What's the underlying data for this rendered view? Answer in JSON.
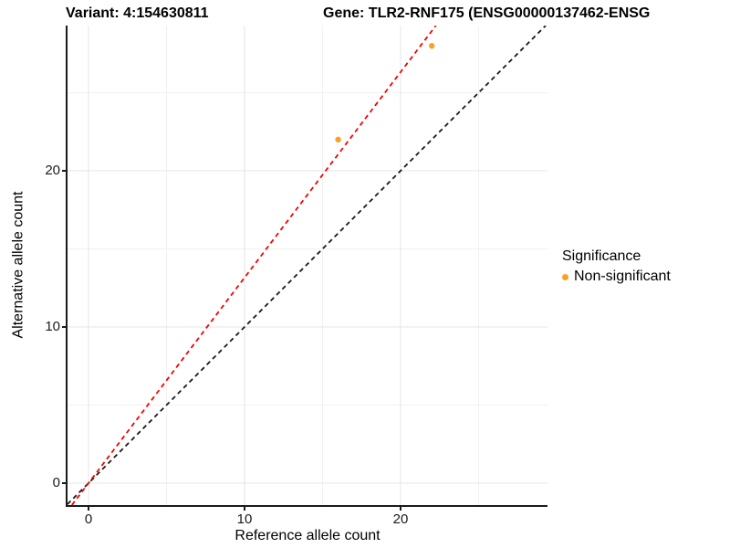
{
  "title": {
    "variant": "Variant: 4:154630811",
    "gene": "Gene: TLR2-RNF175 (ENSG00000137462-ENSG"
  },
  "legend": {
    "title": "Significance",
    "items": [
      {
        "label": "Non-significant",
        "color": "#F9A22B"
      }
    ]
  },
  "colors": {
    "grid_major": "#E4E4E4",
    "grid_minor": "#F1F1F1",
    "axis": "#1A1A1A",
    "identity_line": "#1A1A1A",
    "fit_line": "#F40000"
  },
  "chart_data": {
    "type": "scatter",
    "xlabel": "Reference allele count",
    "ylabel": "Alternative allele count",
    "xlim": [
      -1.35,
      29.4
    ],
    "ylim": [
      -1.4,
      29.3
    ],
    "x_ticks": [
      0,
      10,
      20
    ],
    "y_ticks": [
      0,
      10,
      20
    ],
    "x_minor": [
      5,
      15,
      25
    ],
    "y_minor": [
      5,
      15,
      25
    ],
    "grid": true,
    "legend_position": "right",
    "series": [
      {
        "name": "Non-significant",
        "color": "#F9A22B",
        "marker": "circle",
        "points": [
          [
            16,
            22
          ],
          [
            22,
            28
          ]
        ]
      }
    ],
    "ref_lines": [
      {
        "name": "identity",
        "slope": 1.0,
        "intercept": 0,
        "color": "#1A1A1A",
        "dashed": true
      },
      {
        "name": "fit",
        "slope": 1.316,
        "intercept": 0,
        "color": "#F40000",
        "dashed": true
      }
    ]
  }
}
